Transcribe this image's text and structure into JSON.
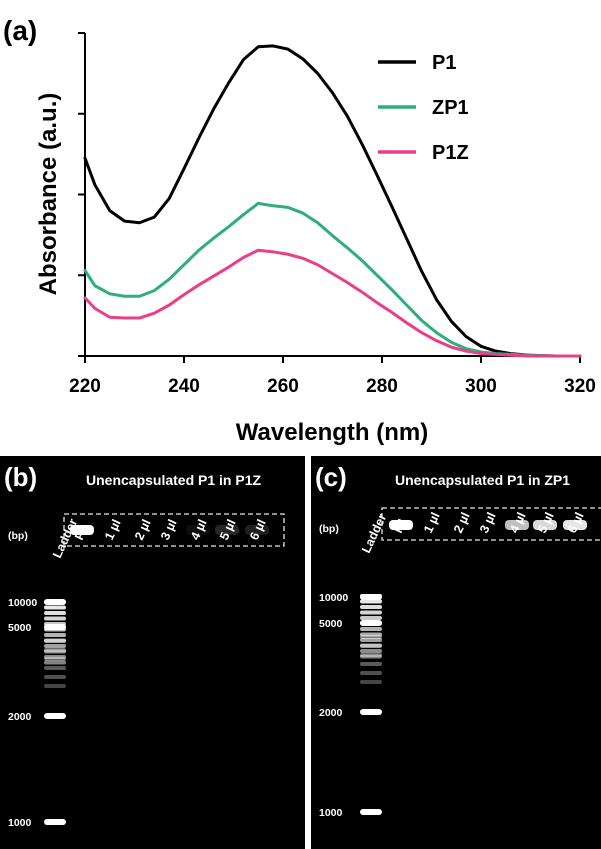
{
  "panel_a": {
    "label": "(a)",
    "xlabel": "Wavelength (nm)",
    "ylabel": "Absorbance (a.u.)"
  },
  "gels": [
    {
      "label": "(b)",
      "title": "Unencapsulated P1 in P1Z",
      "ladder_label": "Ladder",
      "lanes": [
        "P1",
        "1 µl",
        "2 µl",
        "3 µl",
        "4 µl",
        "5 µl",
        "6 µl"
      ],
      "unit_label": "(bp)",
      "markers": [
        "10000",
        "5000",
        "2000",
        "1000"
      ],
      "band_intensity": [
        1.0,
        0.0,
        0.0,
        0.0,
        0.05,
        0.15,
        0.12
      ]
    },
    {
      "label": "(c)",
      "title": "Unencapsulated P1 in ZP1",
      "ladder_label": "Ladder",
      "lanes": [
        "P1",
        "1 µl",
        "2 µl",
        "3 µl",
        "4 µl",
        "5 µl",
        "6 µl"
      ],
      "unit_label": "(bp)",
      "markers": [
        "10000",
        "5000",
        "2000",
        "1000"
      ],
      "band_intensity": [
        1.0,
        0.0,
        0.0,
        0.0,
        0.75,
        0.85,
        0.9
      ]
    }
  ],
  "chart_data": {
    "type": "line",
    "title": "",
    "xlabel": "Wavelength (nm)",
    "ylabel": "Absorbance (a.u.)",
    "xlim": [
      220,
      320
    ],
    "ylim": [
      0,
      4
    ],
    "x_ticks": [
      220,
      240,
      260,
      280,
      300,
      320
    ],
    "y_tick_labels_shown": false,
    "grid": false,
    "legend_position": "top-right",
    "x": [
      220,
      222,
      225,
      228,
      231,
      234,
      237,
      240,
      243,
      246,
      249,
      252,
      255,
      258,
      261,
      264,
      267,
      270,
      273,
      276,
      279,
      282,
      285,
      288,
      291,
      294,
      297,
      300,
      303,
      306,
      310,
      315,
      320
    ],
    "series": [
      {
        "name": "P1",
        "color": "#000000",
        "values": [
          2.45,
          2.12,
          1.8,
          1.67,
          1.65,
          1.72,
          1.95,
          2.32,
          2.7,
          3.06,
          3.38,
          3.67,
          3.83,
          3.84,
          3.8,
          3.68,
          3.5,
          3.26,
          2.97,
          2.62,
          2.24,
          1.85,
          1.45,
          1.05,
          0.7,
          0.43,
          0.24,
          0.12,
          0.06,
          0.03,
          0.01,
          0.0,
          0.0
        ]
      },
      {
        "name": "ZP1",
        "color": "#2eae7a",
        "values": [
          1.06,
          0.87,
          0.77,
          0.74,
          0.74,
          0.81,
          0.95,
          1.13,
          1.31,
          1.46,
          1.6,
          1.75,
          1.89,
          1.86,
          1.84,
          1.77,
          1.65,
          1.49,
          1.34,
          1.18,
          1.0,
          0.82,
          0.63,
          0.44,
          0.29,
          0.17,
          0.09,
          0.05,
          0.03,
          0.02,
          0.01,
          0.0,
          0.0
        ]
      },
      {
        "name": "P1Z",
        "color": "#e93f86",
        "values": [
          0.72,
          0.59,
          0.48,
          0.47,
          0.47,
          0.53,
          0.63,
          0.76,
          0.88,
          0.99,
          1.1,
          1.22,
          1.31,
          1.29,
          1.26,
          1.21,
          1.13,
          1.02,
          0.91,
          0.79,
          0.66,
          0.54,
          0.41,
          0.29,
          0.19,
          0.11,
          0.06,
          0.03,
          0.02,
          0.01,
          0.0,
          0.0,
          0.0
        ]
      }
    ]
  }
}
